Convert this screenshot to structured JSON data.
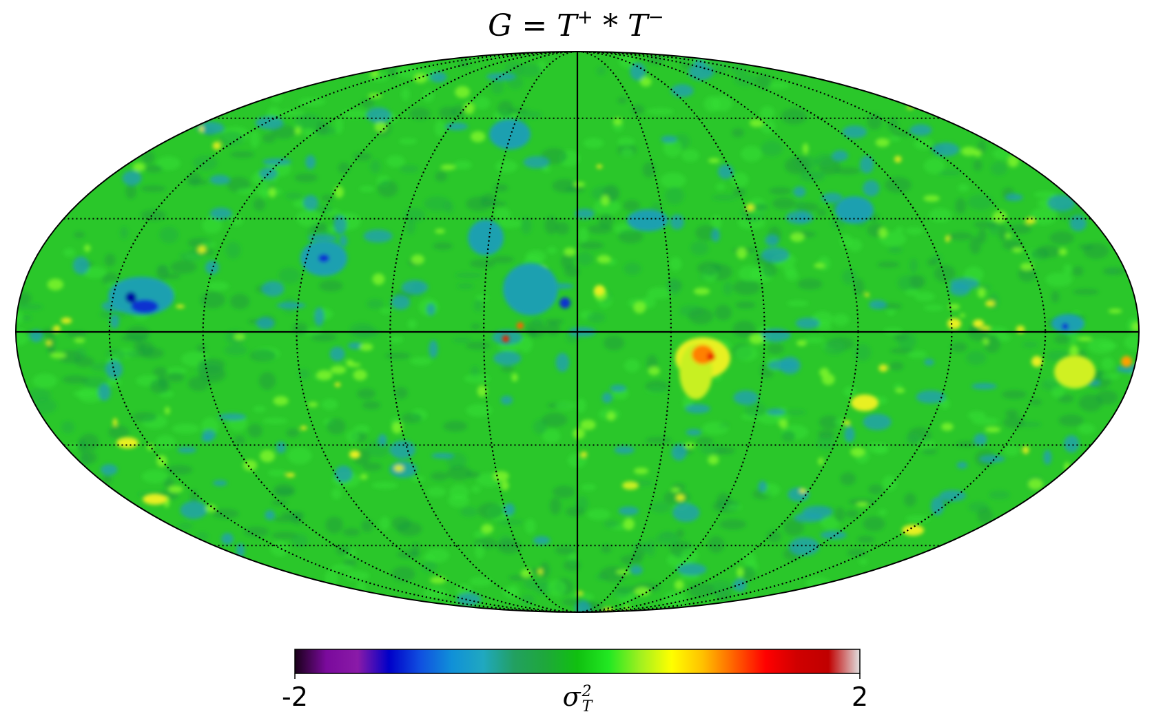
{
  "title": {
    "lhs": "G",
    "eq": " = ",
    "t1": "T",
    "sup1": "+",
    "op": " * ",
    "t2": "T",
    "sup2": "−"
  },
  "projection": "mollweide",
  "graticule": {
    "meridians_step_deg": 30,
    "parallels_deg": [
      -60,
      -30,
      30,
      60
    ],
    "style": "dotted"
  },
  "colorbar": {
    "min_label": "-2",
    "max_label": "2",
    "label_symbol": "σ",
    "label_sup": "2",
    "label_sub": "T",
    "colormap": "planck-like",
    "stops": [
      "#1a001a",
      "#7a0a9c",
      "#8a1aa8",
      "#0000c8",
      "#1050e0",
      "#1090d8",
      "#20a8c0",
      "#22a060",
      "#1ea83a",
      "#10c010",
      "#22e822",
      "#a0f020",
      "#ffff00",
      "#ffc000",
      "#ff6000",
      "#ff0000",
      "#d00000",
      "#c00000",
      "#e0e0e0"
    ]
  },
  "colors": {
    "background_field": "#2ac72a",
    "dark_green": "#1e9f3a",
    "cyan_blob": "#1fa0b0",
    "yellow_spot": "#e8f020",
    "red_spot": "#e82000",
    "blue_spot": "#1030d0"
  }
}
